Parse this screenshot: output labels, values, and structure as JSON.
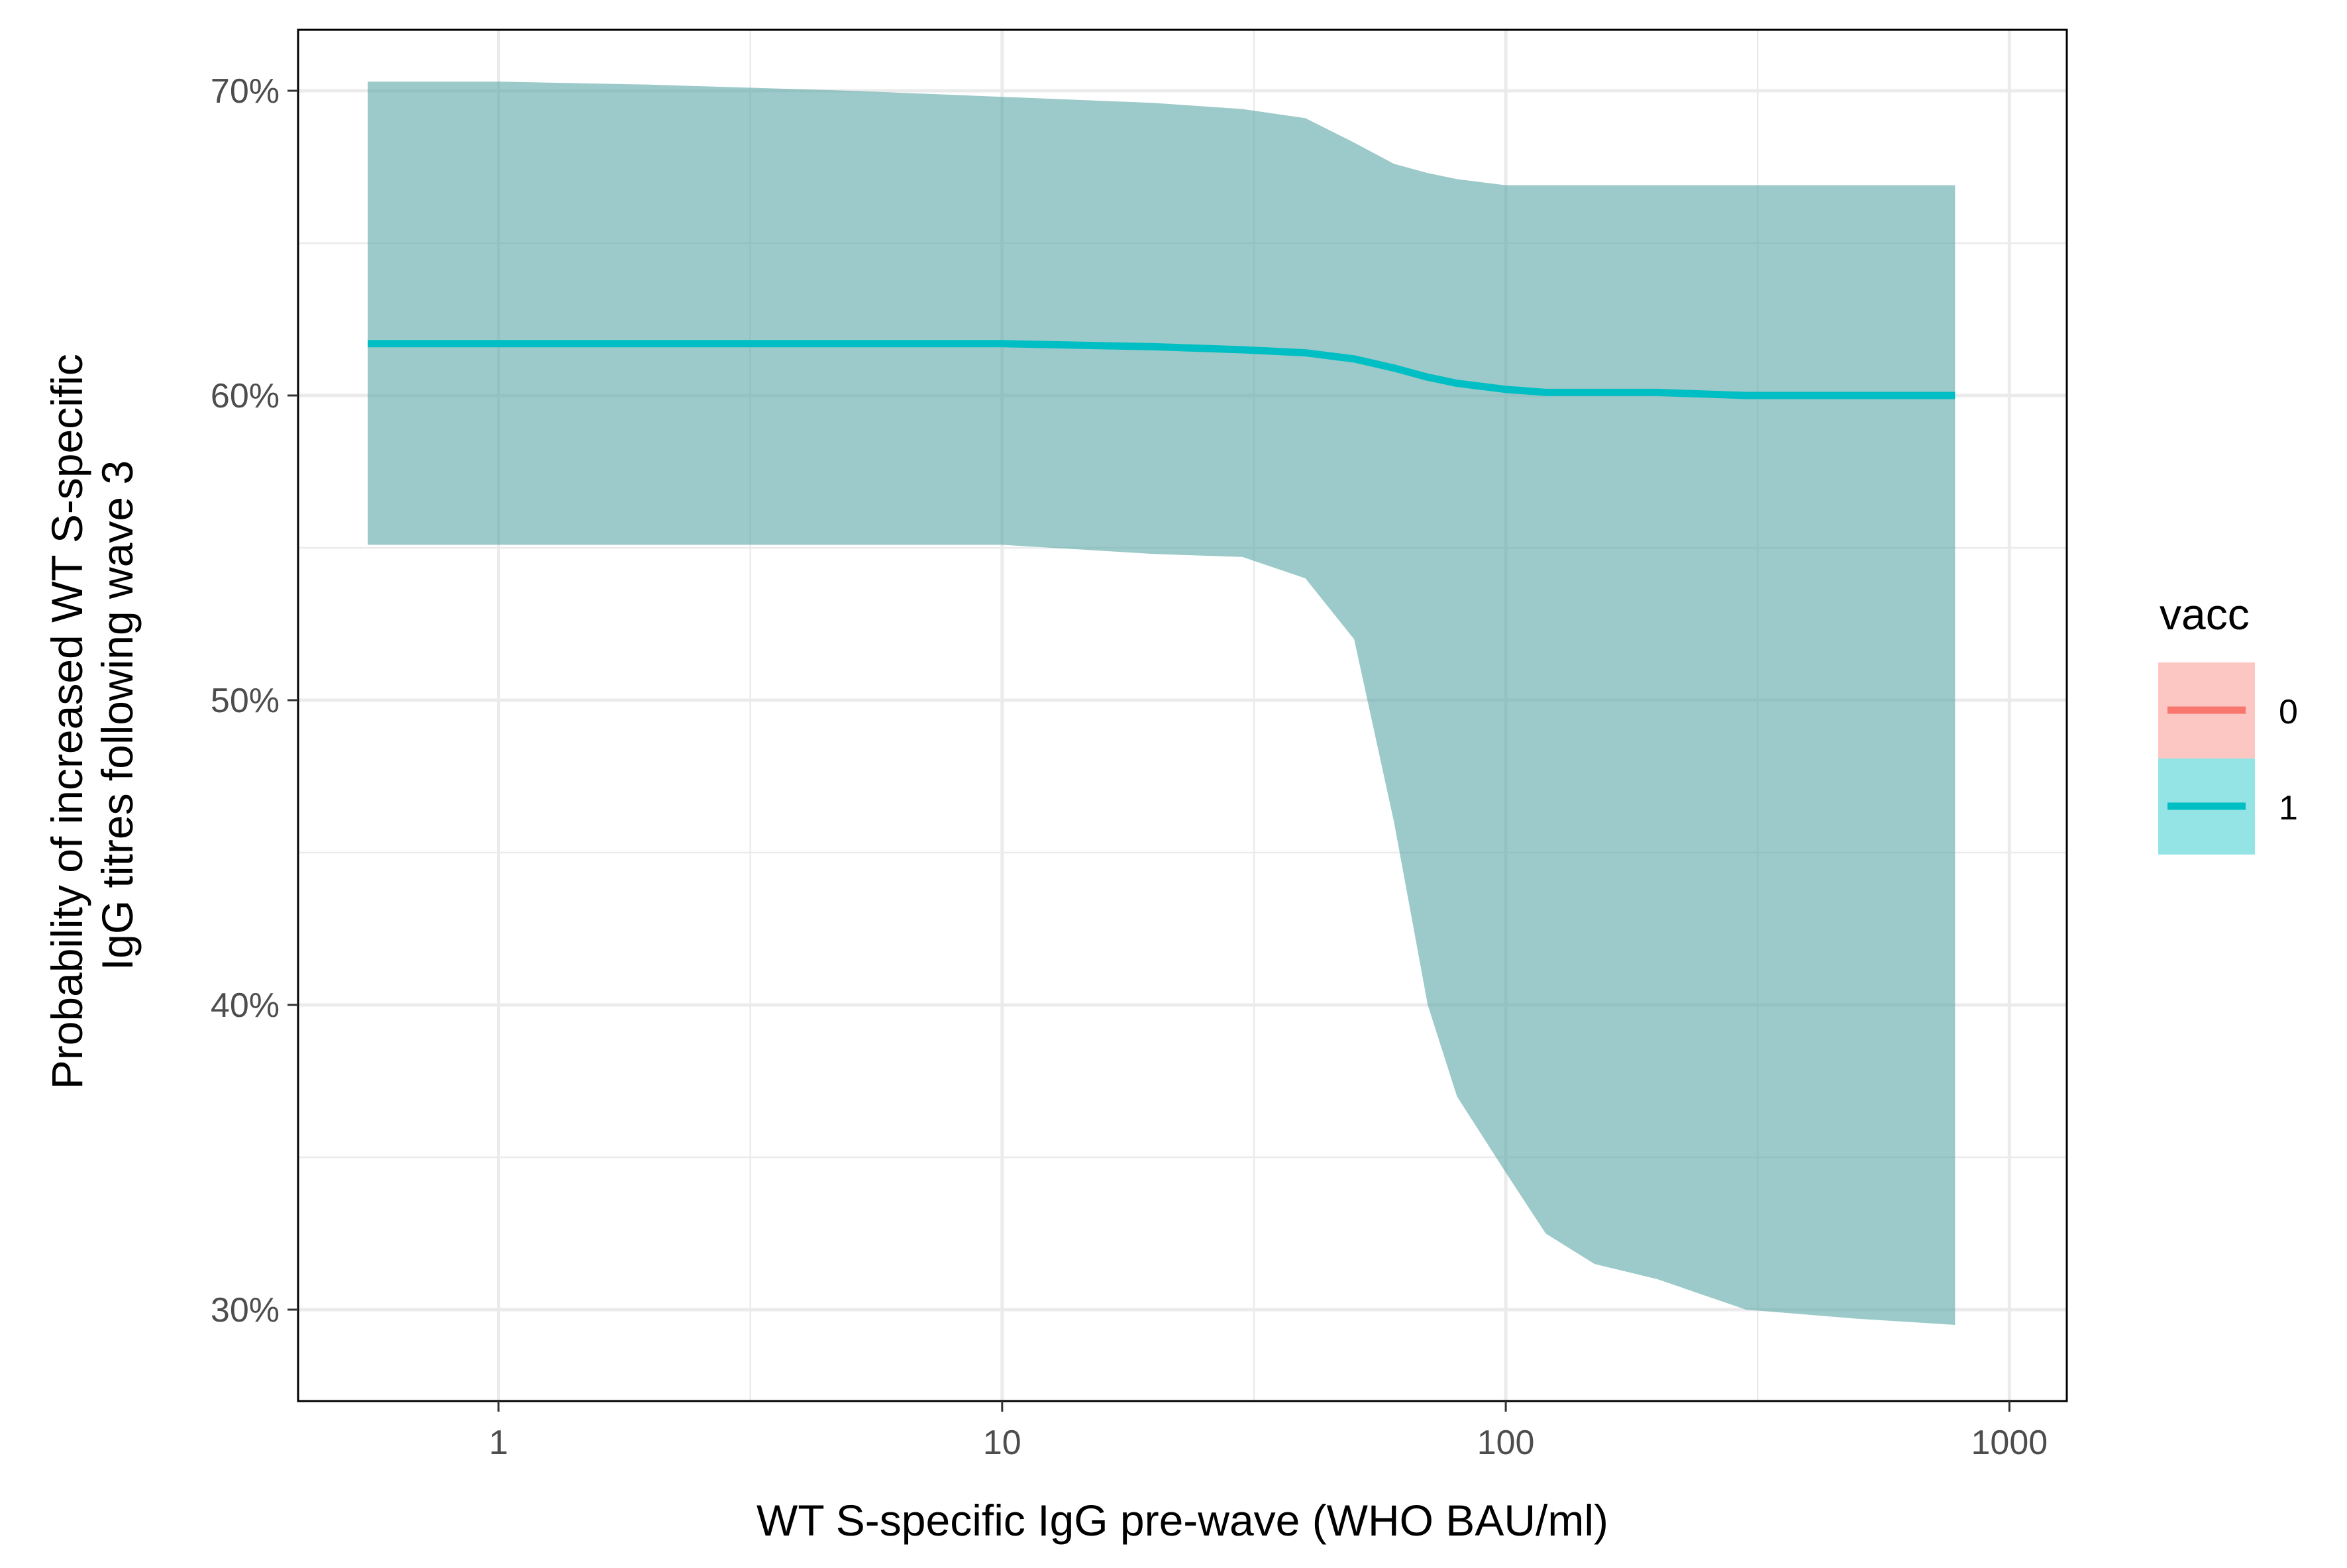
{
  "chart_data": {
    "type": "line",
    "xlabel": "WT S-specific IgG pre-wave (WHO BAU/ml)",
    "ylabel_lines": [
      "Probability of increased WT S-specific",
      "IgG titres following wave 3"
    ],
    "x_scale": "log10",
    "xlim": [
      0.4,
      1300
    ],
    "ylim": [
      0.27,
      0.72
    ],
    "x_ticks": [
      1,
      10,
      100,
      1000
    ],
    "x_tick_labels": [
      "1",
      "10",
      "100",
      "1000"
    ],
    "y_ticks": [
      0.3,
      0.4,
      0.5,
      0.6,
      0.7
    ],
    "y_tick_labels": [
      "30%",
      "40%",
      "50%",
      "60%",
      "70%"
    ],
    "grid": true,
    "legend": {
      "title": "vacc",
      "placement": "right",
      "entries": [
        {
          "label": "0",
          "line_color": "#F8766D",
          "fill_color": "#F8766D"
        },
        {
          "label": "1",
          "line_color": "#00BFC4",
          "fill_color": "#00BFC4"
        }
      ]
    },
    "series": [
      {
        "name": "1",
        "line_color": "#00BFC4",
        "ribbon_color": "#5FA8A8",
        "x": [
          0.55,
          1,
          2,
          5,
          10,
          20,
          30,
          40,
          50,
          60,
          70,
          80,
          100,
          120,
          150,
          200,
          300,
          500,
          780
        ],
        "y": [
          0.617,
          0.617,
          0.617,
          0.617,
          0.617,
          0.616,
          0.615,
          0.614,
          0.612,
          0.609,
          0.606,
          0.604,
          0.602,
          0.601,
          0.601,
          0.601,
          0.6,
          0.6,
          0.6
        ],
        "lower": [
          0.551,
          0.551,
          0.551,
          0.551,
          0.551,
          0.548,
          0.547,
          0.54,
          0.52,
          0.46,
          0.4,
          0.37,
          0.345,
          0.325,
          0.315,
          0.31,
          0.3,
          0.297,
          0.295
        ],
        "upper": [
          0.703,
          0.703,
          0.702,
          0.7,
          0.698,
          0.696,
          0.694,
          0.691,
          0.683,
          0.676,
          0.673,
          0.671,
          0.669,
          0.669,
          0.669,
          0.669,
          0.669,
          0.669,
          0.669
        ]
      }
    ]
  }
}
